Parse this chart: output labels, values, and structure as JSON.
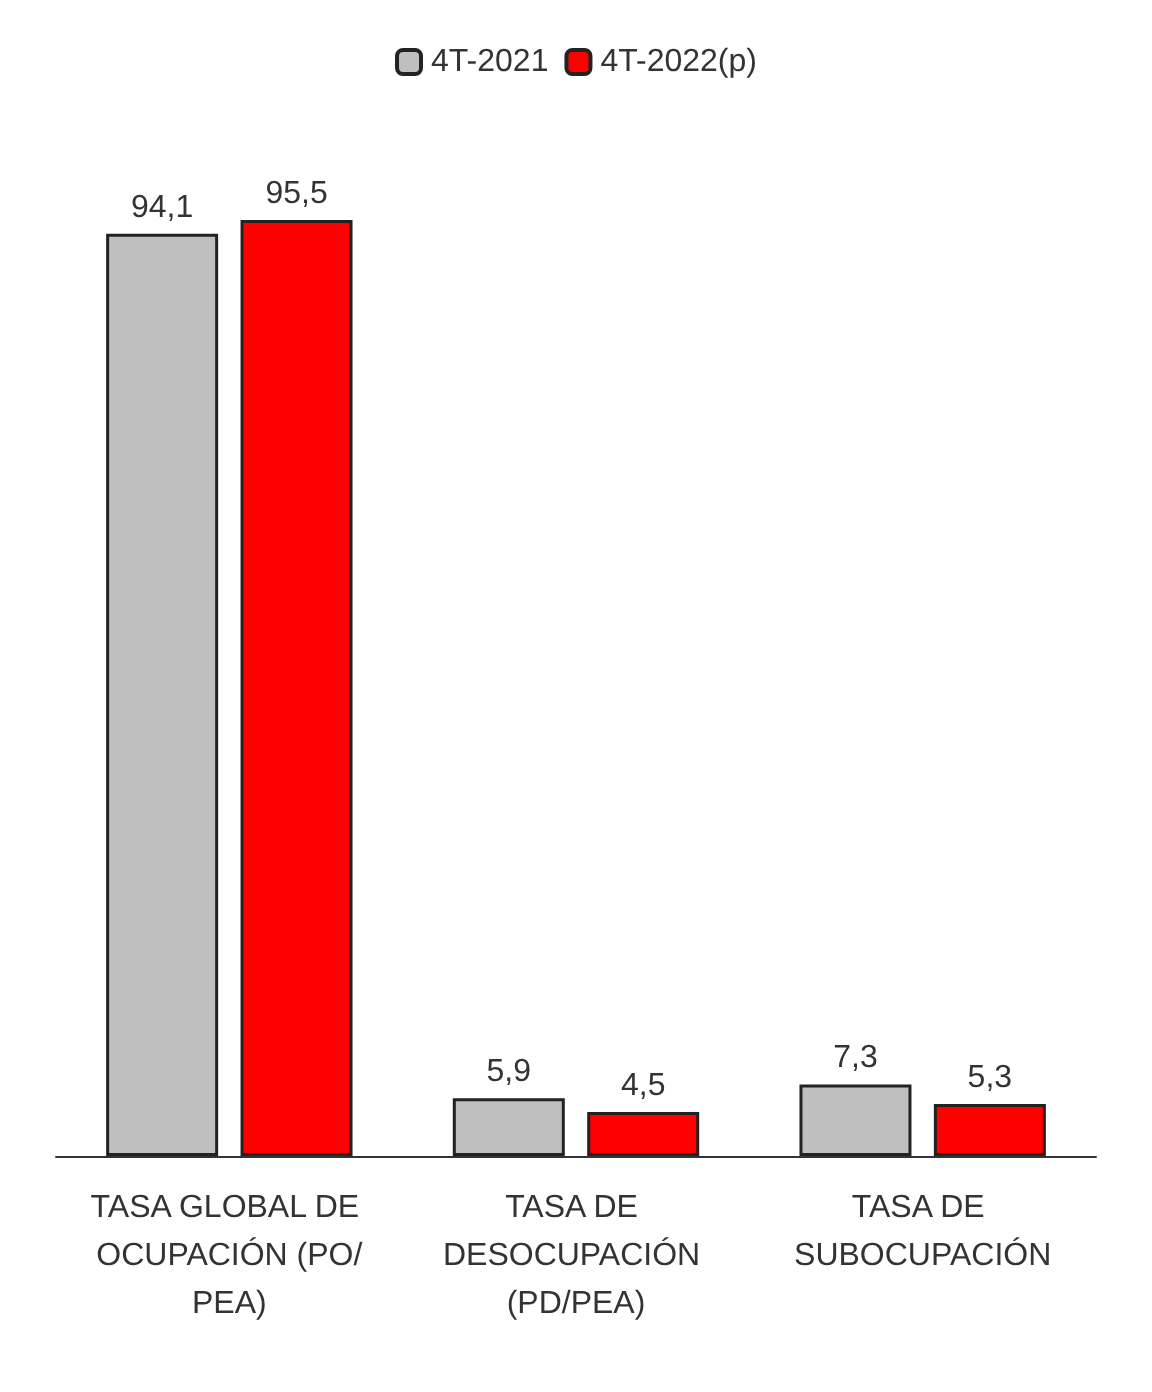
{
  "chart_data": {
    "type": "bar",
    "categories": [
      "TASA GLOBAL DE OCUPACIÓN (PO/PEA)",
      "TASA DE DESOCUPACIÓN (PD/PEA)",
      "TASA DE SUBOCUPACIÓN"
    ],
    "series": [
      {
        "name": "4T-2021",
        "color": "#bfbfbf",
        "values": [
          94.1,
          5.9,
          7.3
        ],
        "value_labels": [
          "94,1",
          "5,9",
          "7,3"
        ]
      },
      {
        "name": "4T-2022(p)",
        "color": "#ff0000",
        "values": [
          95.5,
          4.5,
          5.3
        ],
        "value_labels": [
          "95,5",
          "4,5",
          "5,3"
        ]
      }
    ],
    "legend": "top",
    "tick_labels": "x",
    "grid": false
  }
}
